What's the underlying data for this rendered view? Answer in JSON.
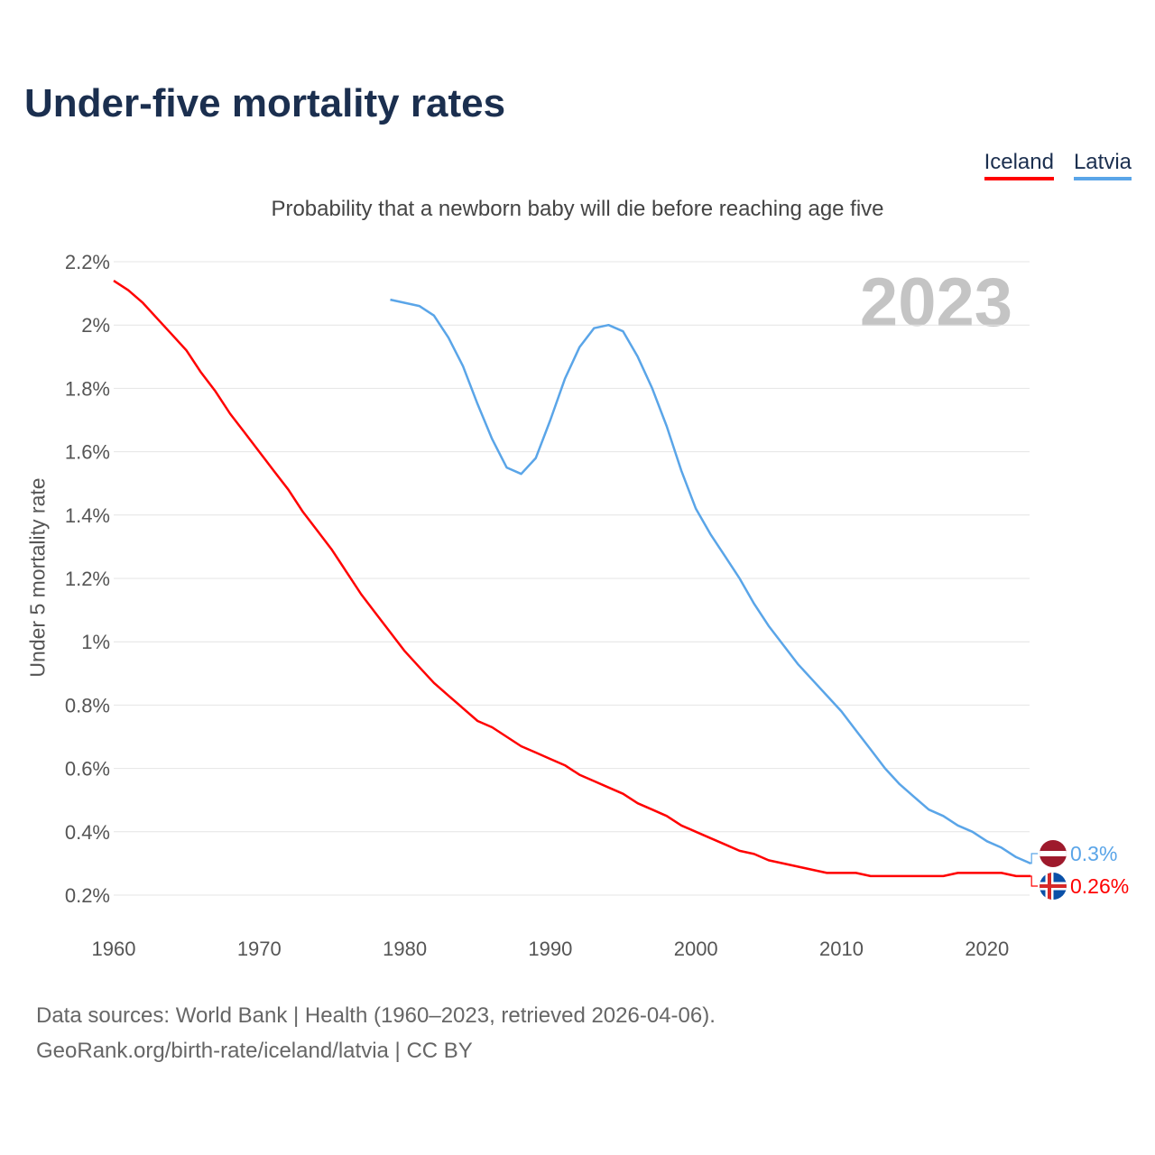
{
  "chart_data": {
    "type": "line",
    "title": "Under-five mortality rates",
    "subtitle": "Probability that a newborn baby will die before reaching age five",
    "ylabel": "Under 5 mortality rate",
    "xlabel": "",
    "year_badge": "2023",
    "ylim": [
      0.2,
      2.2
    ],
    "xlim": [
      1960,
      2023
    ],
    "yticks": [
      {
        "v": 2.2,
        "label": "2.2%"
      },
      {
        "v": 2.0,
        "label": "2%"
      },
      {
        "v": 1.8,
        "label": "1.8%"
      },
      {
        "v": 1.6,
        "label": "1.6%"
      },
      {
        "v": 1.4,
        "label": "1.4%"
      },
      {
        "v": 1.2,
        "label": "1.2%"
      },
      {
        "v": 1.0,
        "label": "1%"
      },
      {
        "v": 0.8,
        "label": "0.8%"
      },
      {
        "v": 0.6,
        "label": "0.6%"
      },
      {
        "v": 0.4,
        "label": "0.4%"
      },
      {
        "v": 0.2,
        "label": "0.2%"
      }
    ],
    "xticks": [
      {
        "v": 1960,
        "label": "1960"
      },
      {
        "v": 1970,
        "label": "1970"
      },
      {
        "v": 1980,
        "label": "1980"
      },
      {
        "v": 1990,
        "label": "1990"
      },
      {
        "v": 2000,
        "label": "2000"
      },
      {
        "v": 2010,
        "label": "2010"
      },
      {
        "v": 2020,
        "label": "2020"
      }
    ],
    "legend_placement": "top-right",
    "series": [
      {
        "name": "Iceland",
        "color": "#ff0000",
        "end_label": "0.26%",
        "x_start": 1960,
        "values": [
          2.14,
          2.11,
          2.07,
          2.02,
          1.97,
          1.92,
          1.85,
          1.79,
          1.72,
          1.66,
          1.6,
          1.54,
          1.48,
          1.41,
          1.35,
          1.29,
          1.22,
          1.15,
          1.09,
          1.03,
          0.97,
          0.92,
          0.87,
          0.83,
          0.79,
          0.75,
          0.73,
          0.7,
          0.67,
          0.65,
          0.63,
          0.61,
          0.58,
          0.56,
          0.54,
          0.52,
          0.49,
          0.47,
          0.45,
          0.42,
          0.4,
          0.38,
          0.36,
          0.34,
          0.33,
          0.31,
          0.3,
          0.29,
          0.28,
          0.27,
          0.27,
          0.27,
          0.26,
          0.26,
          0.26,
          0.26,
          0.26,
          0.26,
          0.27,
          0.27,
          0.27,
          0.27,
          0.26,
          0.26
        ]
      },
      {
        "name": "Latvia",
        "color": "#5aa5e8",
        "end_label": "0.3%",
        "x_start": 1979,
        "values": [
          2.08,
          2.07,
          2.06,
          2.03,
          1.96,
          1.87,
          1.75,
          1.64,
          1.55,
          1.53,
          1.58,
          1.7,
          1.83,
          1.93,
          1.99,
          2.0,
          1.98,
          1.9,
          1.8,
          1.68,
          1.54,
          1.42,
          1.34,
          1.27,
          1.2,
          1.12,
          1.05,
          0.99,
          0.93,
          0.88,
          0.83,
          0.78,
          0.72,
          0.66,
          0.6,
          0.55,
          0.51,
          0.47,
          0.45,
          0.42,
          0.4,
          0.37,
          0.35,
          0.32,
          0.3
        ]
      }
    ]
  },
  "footer": {
    "line1": "Data sources: World Bank | Health (1960–2023, retrieved 2026-04-06).",
    "line2": "GeoRank.org/birth-rate/iceland/latvia | CC BY"
  }
}
